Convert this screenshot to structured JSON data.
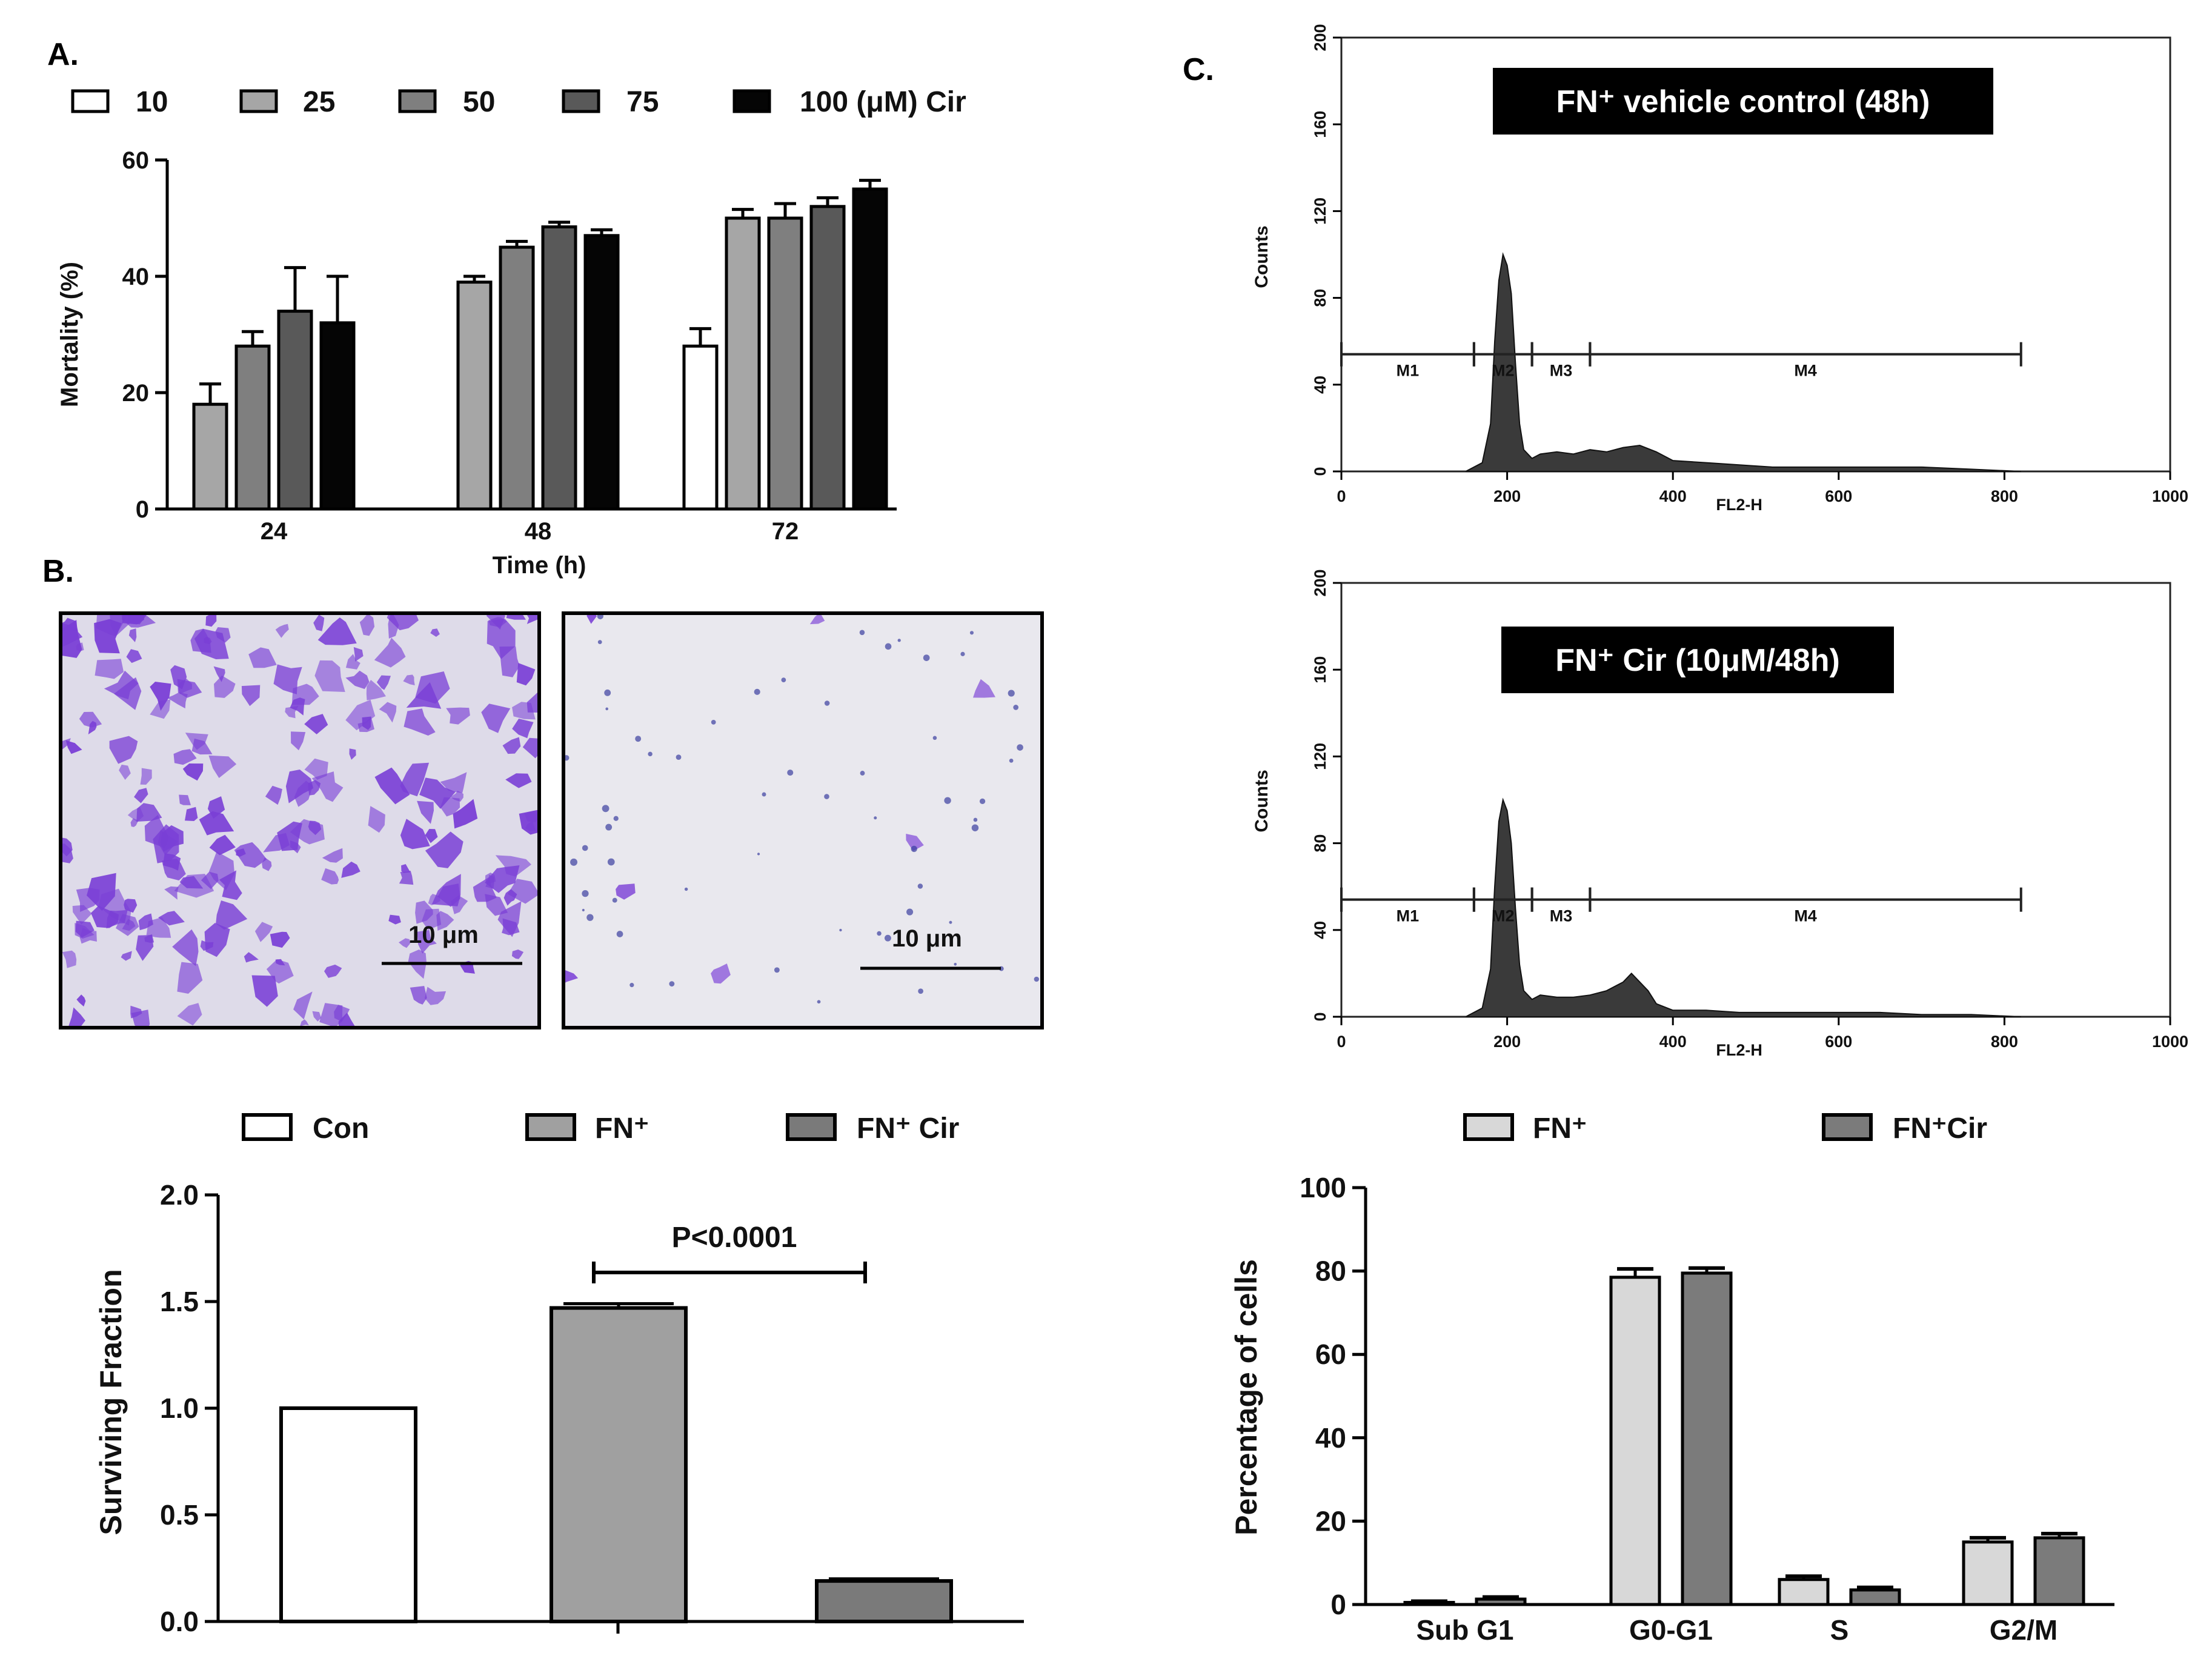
{
  "panel_labels": {
    "a": "A.",
    "b": "B.",
    "c": "C."
  },
  "colors": {
    "dose_10": "#ffffff",
    "dose_25": "#a6a6a6",
    "dose_50": "#7f7f7f",
    "dose_75": "#595959",
    "dose_100": "#050505",
    "con": "#ffffff",
    "fn": "#a0a0a0",
    "fn_cir": "#7a7a7a",
    "fn_light": "#d8d8d8",
    "fn_cir_dark": "#7b7b7b",
    "stain": "#7a3fd6",
    "histogram": "#3a3a3a"
  },
  "chart_data": [
    {
      "id": "panel-a",
      "type": "bar",
      "title": "",
      "xlabel": "Time (h)",
      "ylabel": "Mortality (%)",
      "ylim": [
        0,
        60
      ],
      "yticks": [
        0,
        20,
        40,
        60
      ],
      "categories": [
        "24",
        "48",
        "72"
      ],
      "legend_position": "top",
      "series": [
        {
          "name": "10",
          "legend_label": "10",
          "color_key": "dose_10",
          "values": [
            null,
            null,
            28
          ],
          "errors": [
            null,
            null,
            3
          ]
        },
        {
          "name": "25",
          "legend_label": "25",
          "color_key": "dose_25",
          "values": [
            18,
            39,
            50
          ],
          "errors": [
            3.5,
            1,
            1.5
          ]
        },
        {
          "name": "50",
          "legend_label": "50",
          "color_key": "dose_50",
          "values": [
            28,
            45,
            50
          ],
          "errors": [
            2.5,
            1,
            2.5
          ]
        },
        {
          "name": "75",
          "legend_label": "75",
          "color_key": "dose_75",
          "values": [
            34,
            48.5,
            52
          ],
          "errors": [
            7.5,
            0.8,
            1.5
          ]
        },
        {
          "name": "100 (μM) Cir",
          "legend_label": "100 (μM) Cir",
          "color_key": "dose_100",
          "values": [
            32,
            47,
            55
          ],
          "errors": [
            8,
            1,
            1.5
          ]
        }
      ]
    },
    {
      "id": "panel-b-bar",
      "type": "bar",
      "title": "",
      "xlabel": "",
      "ylabel": "Surviving Fraction",
      "ylim": [
        0,
        2.0
      ],
      "yticks": [
        "0.0",
        "0.5",
        "1.0",
        "1.5",
        "2.0"
      ],
      "categories": [
        "Con",
        "FN⁺",
        "FN⁺ Cir"
      ],
      "legend_position": "top",
      "legend_labels": [
        "Con",
        "FN⁺",
        "FN⁺ Cir"
      ],
      "values": [
        1.0,
        1.47,
        0.19
      ],
      "errors": [
        0,
        0.02,
        0.01
      ],
      "annotation": "P<0.0001"
    },
    {
      "id": "panel-c-top",
      "type": "area",
      "title": "FN⁺ vehicle control (48h)",
      "xlabel": "FL2-H",
      "ylabel": "Counts",
      "xlim": [
        0,
        1000
      ],
      "ylim": [
        0,
        200
      ],
      "xticks": [
        "0",
        "200",
        "400",
        "600",
        "800",
        "1000"
      ],
      "yticks": [
        "0",
        "40",
        "80",
        "120",
        "160",
        "200"
      ],
      "markers": [
        {
          "label": "M1",
          "range": [
            0,
            160
          ]
        },
        {
          "label": "M2",
          "range": [
            160,
            230
          ]
        },
        {
          "label": "M3",
          "range": [
            230,
            300
          ]
        },
        {
          "label": "M4",
          "range": [
            300,
            820
          ]
        }
      ],
      "marker_level": 54,
      "x": [
        150,
        170,
        180,
        185,
        190,
        195,
        200,
        205,
        210,
        215,
        220,
        230,
        240,
        260,
        280,
        300,
        320,
        340,
        360,
        380,
        400,
        440,
        480,
        520,
        560,
        600,
        650,
        700,
        760,
        820
      ],
      "y": [
        0,
        4,
        22,
        60,
        88,
        100,
        95,
        82,
        50,
        22,
        10,
        6,
        8,
        9,
        8,
        10,
        9,
        11,
        12,
        9,
        5,
        4,
        3,
        2,
        2,
        2,
        2,
        2,
        1,
        0
      ]
    },
    {
      "id": "panel-c-bottom",
      "type": "area",
      "title": "FN⁺ Cir (10μM/48h)",
      "xlabel": "FL2-H",
      "ylabel": "Counts",
      "xlim": [
        0,
        1000
      ],
      "ylim": [
        0,
        200
      ],
      "xticks": [
        "0",
        "200",
        "400",
        "600",
        "800",
        "1000"
      ],
      "yticks": [
        "0",
        "40",
        "80",
        "120",
        "160",
        "200"
      ],
      "markers": [
        {
          "label": "M1",
          "range": [
            0,
            160
          ]
        },
        {
          "label": "M2",
          "range": [
            160,
            230
          ]
        },
        {
          "label": "M3",
          "range": [
            230,
            300
          ]
        },
        {
          "label": "M4",
          "range": [
            300,
            820
          ]
        }
      ],
      "marker_level": 54,
      "x": [
        150,
        170,
        180,
        185,
        190,
        195,
        200,
        205,
        210,
        215,
        220,
        230,
        240,
        260,
        280,
        300,
        320,
        340,
        350,
        360,
        370,
        380,
        400,
        440,
        480,
        520,
        560,
        600,
        650,
        700,
        760,
        820
      ],
      "y": [
        0,
        4,
        22,
        60,
        90,
        100,
        95,
        80,
        50,
        24,
        12,
        8,
        10,
        9,
        9,
        10,
        12,
        16,
        20,
        16,
        12,
        6,
        3,
        3,
        2,
        2,
        2,
        2,
        2,
        1,
        1,
        0
      ]
    },
    {
      "id": "panel-c-bar",
      "type": "bar",
      "title": "",
      "xlabel": "",
      "ylabel": "Percentage of cells",
      "ylim": [
        0,
        100
      ],
      "yticks": [
        "0",
        "20",
        "40",
        "60",
        "80",
        "100"
      ],
      "categories": [
        "Sub G1",
        "G0-G1",
        "S",
        "G2/M"
      ],
      "legend_position": "top",
      "series": [
        {
          "name": "FN⁺",
          "legend_label": "FN⁺",
          "color_key": "fn_light",
          "values": [
            0.5,
            78.5,
            6,
            15
          ],
          "errors": [
            0.3,
            2,
            0.8,
            1
          ]
        },
        {
          "name": "FN⁺Cir",
          "legend_label": "FN⁺Cir",
          "color_key": "fn_cir_dark",
          "values": [
            1.3,
            79.5,
            3.5,
            16
          ],
          "errors": [
            0.5,
            1.2,
            0.6,
            1
          ]
        }
      ]
    }
  ],
  "micrographs": [
    {
      "scale_label": "10 μm",
      "cell_density": "high"
    },
    {
      "scale_label": "10 μm",
      "cell_density": "low"
    }
  ]
}
